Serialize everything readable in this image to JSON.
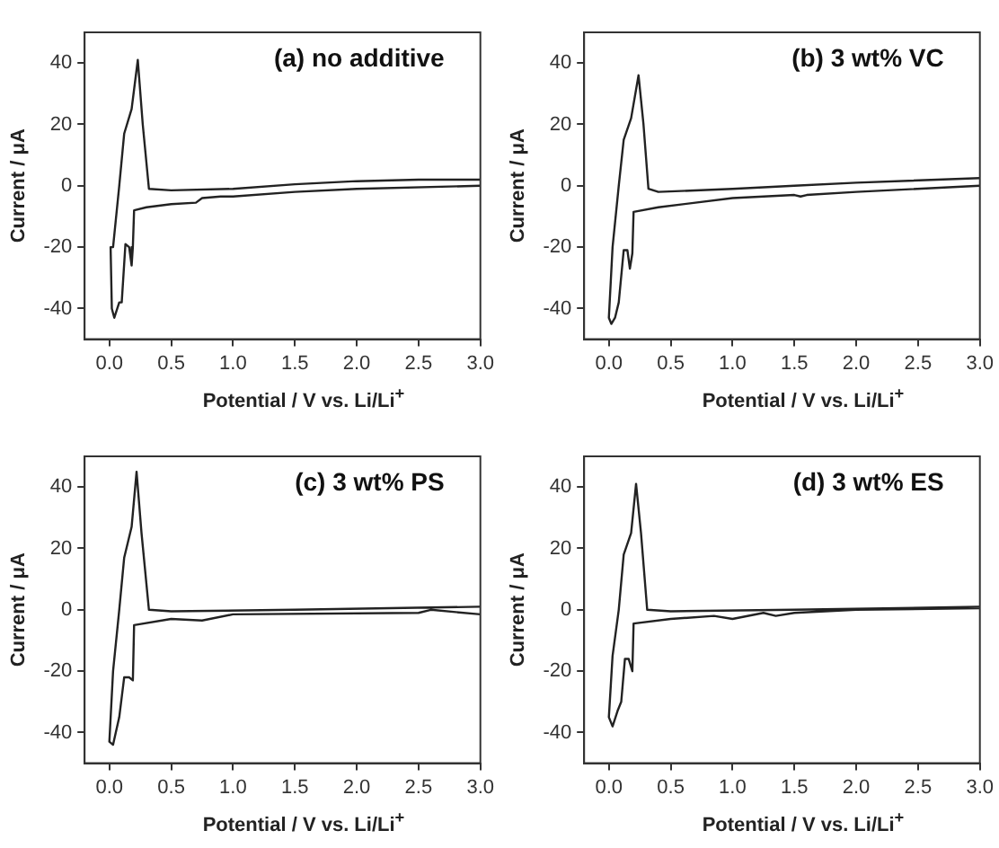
{
  "chart_data": [
    {
      "type": "line",
      "title": "(a) no additive",
      "xlabel": "Potential / V vs. Li/Li$^{+}$",
      "ylabel": "Current / μA",
      "xlim": [
        -0.2,
        3.0
      ],
      "xticks": [
        {
          "value": 0,
          "label": "0.0"
        },
        0.5,
        {
          "value": 1,
          "label": "1.0"
        },
        1.5,
        {
          "value": 2,
          "label": "2.0"
        },
        2.5,
        {
          "value": 3,
          "label": "3.0"
        }
      ],
      "ylim": [
        -50,
        50
      ],
      "yticks": [
        -40,
        -20,
        0,
        20,
        40
      ],
      "grid": false,
      "legend": false,
      "marker": "none",
      "line_style": "solid",
      "series": [
        {
          "color": "#222222",
          "x": [
            3.0,
            2.0,
            1.5,
            1.0,
            0.9,
            0.75,
            0.7,
            0.5,
            0.3,
            0.2,
            0.19,
            0.18,
            0.16,
            0.13,
            0.1,
            0.08,
            0.04,
            0.02,
            0.01,
            0.03,
            0.08,
            0.12,
            0.18,
            0.23,
            0.27,
            0.32,
            0.5,
            1.0,
            1.5,
            2.0,
            2.5,
            3.0
          ],
          "values": [
            0,
            -1,
            -2,
            -3.5,
            -3.5,
            -4,
            -5.5,
            -6,
            -7,
            -8,
            -20,
            -26,
            -20,
            -19,
            -38,
            -38,
            -43,
            -40,
            -20,
            -20,
            0,
            17,
            25,
            41,
            20,
            -1,
            -1.5,
            -1,
            0.5,
            1.5,
            2,
            2
          ]
        }
      ]
    },
    {
      "type": "line",
      "title": "(b) 3 wt% VC",
      "xlabel": "Potential / V vs. Li/Li$^{+}$",
      "ylabel": "Current / μA",
      "xlim": [
        -0.2,
        3.0
      ],
      "xticks": [
        {
          "value": 0,
          "label": "0.0"
        },
        0.5,
        {
          "value": 1,
          "label": "1.0"
        },
        1.5,
        {
          "value": 2,
          "label": "2.0"
        },
        2.5,
        {
          "value": 3,
          "label": "3.0"
        }
      ],
      "ylim": [
        -50,
        50
      ],
      "yticks": [
        -40,
        -20,
        0,
        20,
        40
      ],
      "grid": false,
      "legend": false,
      "marker": "none",
      "line_style": "solid",
      "series": [
        {
          "color": "#222222",
          "x": [
            3.0,
            2.0,
            1.6,
            1.55,
            1.5,
            1.0,
            0.7,
            0.4,
            0.2,
            0.19,
            0.17,
            0.15,
            0.12,
            0.08,
            0.05,
            0.02,
            0.0,
            0.03,
            0.08,
            0.12,
            0.18,
            0.24,
            0.28,
            0.32,
            0.4,
            1.0,
            1.5,
            2.0,
            3.0
          ],
          "values": [
            0,
            -2,
            -3,
            -3.5,
            -3,
            -4,
            -5.5,
            -7,
            -8.5,
            -22,
            -27,
            -21,
            -21,
            -38,
            -43,
            -45,
            -43,
            -20,
            0,
            15,
            22,
            36,
            20,
            -1,
            -2,
            -1,
            0,
            1,
            2.5
          ]
        }
      ]
    },
    {
      "type": "line",
      "title": "(c) 3 wt% PS",
      "xlabel": "Potential / V vs. Li/Li$^{+}$",
      "ylabel": "Current / μA",
      "xlim": [
        -0.2,
        3.0
      ],
      "xticks": [
        {
          "value": 0,
          "label": "0.0"
        },
        0.5,
        {
          "value": 1,
          "label": "1.0"
        },
        1.5,
        {
          "value": 2,
          "label": "2.0"
        },
        2.5,
        {
          "value": 3,
          "label": "3.0"
        }
      ],
      "ylim": [
        -50,
        50
      ],
      "yticks": [
        -40,
        -20,
        0,
        20,
        40
      ],
      "grid": false,
      "legend": false,
      "marker": "none",
      "line_style": "solid",
      "series": [
        {
          "color": "#222222",
          "x": [
            3.0,
            2.6,
            2.5,
            1.0,
            0.75,
            0.5,
            0.2,
            0.19,
            0.16,
            0.12,
            0.08,
            0.03,
            0.0,
            0.03,
            0.08,
            0.12,
            0.18,
            0.22,
            0.26,
            0.32,
            0.5,
            1.5,
            3.0
          ],
          "values": [
            -1.5,
            0,
            -1,
            -1.5,
            -3.5,
            -3,
            -5,
            -23,
            -22,
            -22,
            -35,
            -44,
            -43,
            -20,
            0,
            17,
            27,
            45,
            25,
            0,
            -0.5,
            0,
            1
          ]
        }
      ]
    },
    {
      "type": "line",
      "title": "(d) 3 wt% ES",
      "xlabel": "Potential / V vs. Li/Li$^{+}$",
      "ylabel": "Current / μA",
      "xlim": [
        -0.2,
        3.0
      ],
      "xticks": [
        {
          "value": 0,
          "label": "0.0"
        },
        0.5,
        {
          "value": 1,
          "label": "1.0"
        },
        1.5,
        {
          "value": 2,
          "label": "2.0"
        },
        2.5,
        {
          "value": 3,
          "label": "3.0"
        }
      ],
      "ylim": [
        -50,
        50
      ],
      "yticks": [
        -40,
        -20,
        0,
        20,
        40
      ],
      "grid": false,
      "legend": false,
      "marker": "none",
      "line_style": "solid",
      "series": [
        {
          "color": "#222222",
          "x": [
            3.0,
            2.0,
            1.5,
            1.35,
            1.25,
            1.0,
            0.85,
            0.5,
            0.2,
            0.19,
            0.16,
            0.13,
            0.1,
            0.07,
            0.03,
            0.0,
            0.03,
            0.08,
            0.12,
            0.18,
            0.22,
            0.26,
            0.31,
            0.5,
            1.5,
            3.0
          ],
          "values": [
            0.5,
            0,
            -1,
            -2,
            -1,
            -3,
            -2,
            -3,
            -4.5,
            -20,
            -16,
            -16,
            -30,
            -33,
            -38,
            -35,
            -15,
            0,
            18,
            25,
            41,
            25,
            0,
            -0.5,
            0,
            1
          ]
        }
      ]
    }
  ]
}
